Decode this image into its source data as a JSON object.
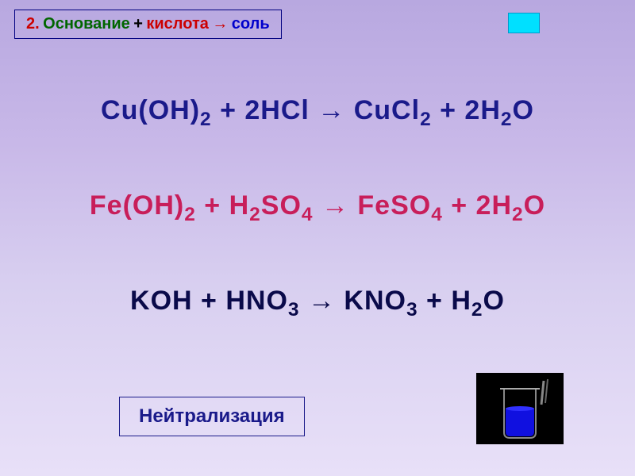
{
  "title": {
    "num": "2.",
    "base": "Основание",
    "plus": "+",
    "acid": "кислота",
    "arrow": "→",
    "salt": "соль"
  },
  "equations": {
    "eq1": {
      "text_html": "Cu(OH)<sub>2</sub> + 2HCl → CuCl<sub>2</sub> + 2H<sub>2</sub>O",
      "color": "#1a1a8a",
      "fontsize": 34
    },
    "eq2": {
      "text_html": "Fe(OH)<sub>2</sub> + H<sub>2</sub>SO<sub>4</sub> → FeSO<sub>4</sub> + 2H<sub>2</sub>O",
      "color": "#c81e5a",
      "fontsize": 34
    },
    "eq3": {
      "text_html": "KOH + HNO<sub>3</sub> → KNO<sub>3</sub> + H<sub>2</sub>O",
      "color": "#0a0a4a",
      "fontsize": 34
    }
  },
  "neutralization": {
    "label": "Нейтрализация",
    "color": "#1a1a8a",
    "border_color": "#1a1a8a",
    "fontsize": 24
  },
  "decor": {
    "cyan_box_color": "#00e0ff",
    "background_gradient": [
      "#b8a8e0",
      "#e8e0f8"
    ],
    "beaker_liquid_color": "#1010e0",
    "beaker_bg": "#000000"
  }
}
